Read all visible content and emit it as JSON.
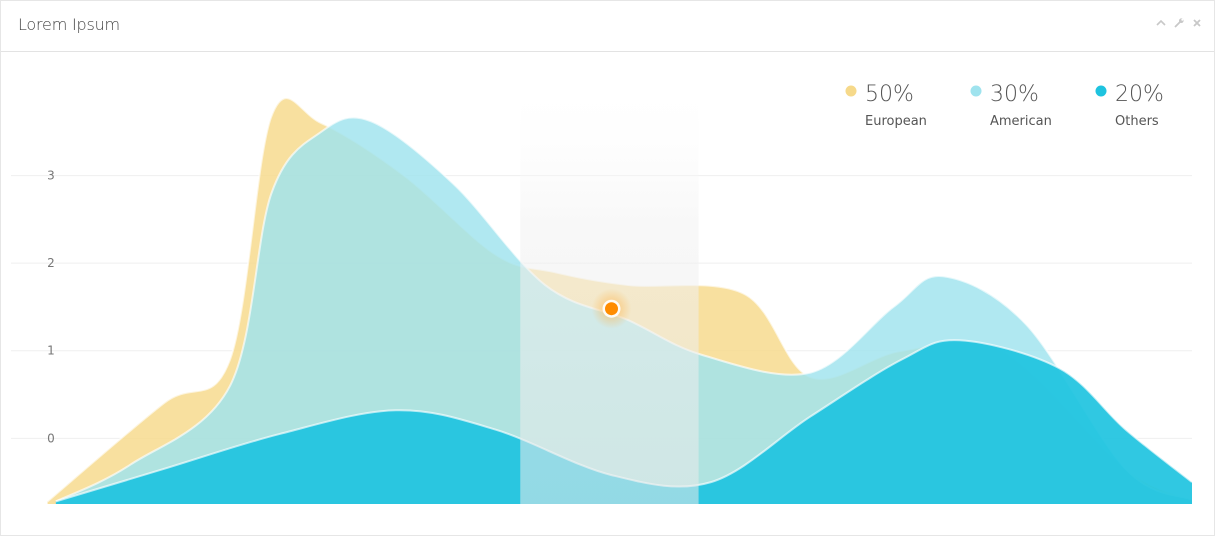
{
  "panel": {
    "title": "Lorem Ipsum",
    "tools": {
      "collapse_icon": "chevron-up-icon",
      "settings_icon": "wrench-icon",
      "close_icon": "close-icon"
    }
  },
  "chart_data": {
    "type": "area",
    "yticks": [
      "0",
      "1",
      "2",
      "3"
    ],
    "ylim": [
      -0.75,
      4.4
    ],
    "xlim": [
      0,
      14
    ],
    "grid": true,
    "legend_placement": "top-right",
    "highlight_band": {
      "x_from": 5.9,
      "x_to": 8.05
    },
    "marker": {
      "x": 7.0,
      "y": 1.48,
      "color": "#ff8c00"
    },
    "series": [
      {
        "name": "European",
        "percent": "50%",
        "color": "#f6d98a",
        "x": [
          0.2,
          1.6,
          2.4,
          2.9,
          3.5,
          4.5,
          5.6,
          6.3,
          7.2,
          8.6,
          9.4,
          10.5,
          11.7,
          13.2,
          14
        ],
        "values": [
          -0.72,
          0.4,
          0.9,
          3.68,
          3.6,
          3.0,
          2.1,
          1.9,
          1.75,
          1.65,
          0.7,
          1.0,
          1.0,
          -0.35,
          -0.7
        ]
      },
      {
        "name": "American",
        "percent": "30%",
        "color": "#9fe3ee",
        "x": [
          0.3,
          1.2,
          2.4,
          2.9,
          3.5,
          4.1,
          5.1,
          6.2,
          7.2,
          8.1,
          9.4,
          10.4,
          11.0,
          12.0,
          13.2,
          14
        ],
        "values": [
          -0.72,
          -0.3,
          0.6,
          2.8,
          3.5,
          3.62,
          2.9,
          1.75,
          1.35,
          0.95,
          0.75,
          1.5,
          1.85,
          1.3,
          -0.35,
          -0.7
        ]
      },
      {
        "name": "Others",
        "percent": "20%",
        "color": "#1ec3df",
        "x": [
          0.3,
          1.6,
          3.0,
          4.4,
          5.6,
          7.0,
          8.2,
          9.4,
          10.5,
          11.2,
          12.4,
          13.2,
          14
        ],
        "values": [
          -0.72,
          -0.35,
          0.05,
          0.32,
          0.1,
          -0.42,
          -0.5,
          0.25,
          0.9,
          1.12,
          0.8,
          0.1,
          -0.5
        ]
      }
    ]
  }
}
